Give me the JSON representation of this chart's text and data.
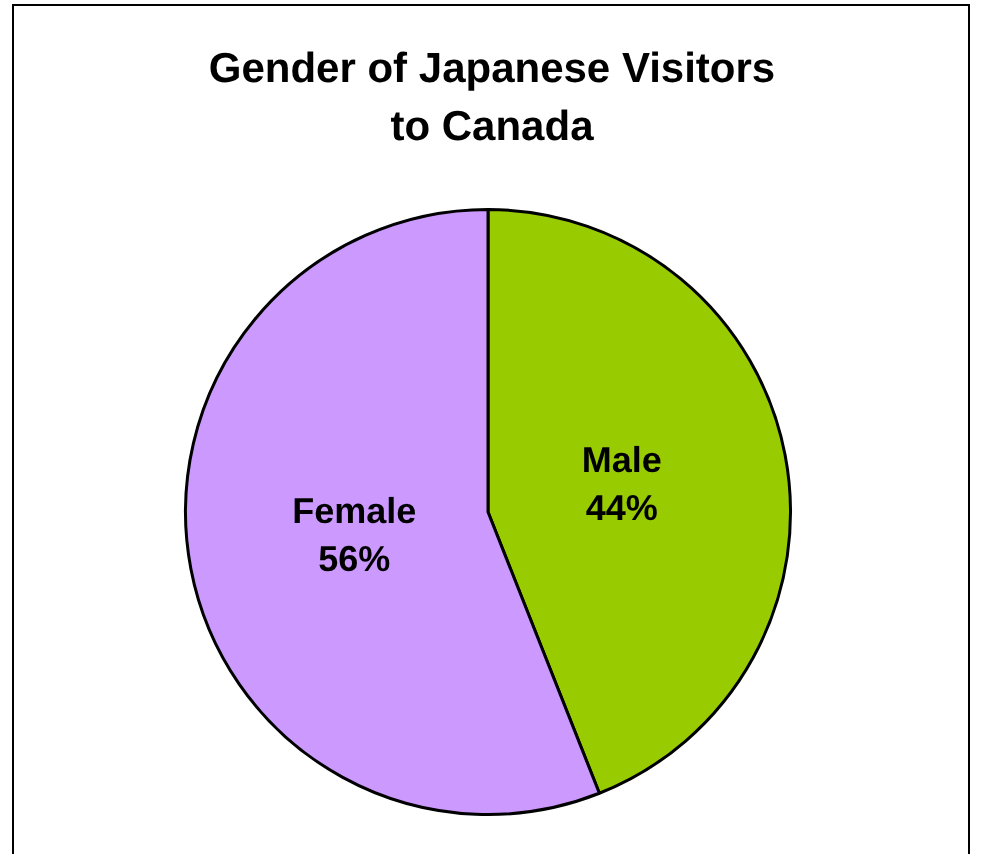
{
  "chart_data": {
    "type": "pie",
    "title": "Gender of Japanese Visitors to Canada",
    "categories": [
      "Male",
      "Female"
    ],
    "values": [
      44,
      56
    ],
    "colors": [
      "#99cc00",
      "#cc99ff"
    ],
    "value_labels": [
      "44%",
      "56%"
    ],
    "legend": false
  }
}
